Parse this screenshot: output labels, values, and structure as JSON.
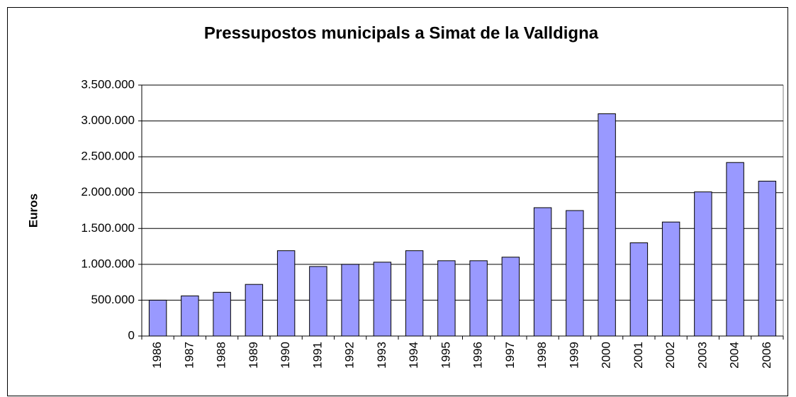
{
  "chart_data": {
    "type": "bar",
    "title": "Pressupostos municipals a Simat de la Valldigna",
    "y_label": "Euros",
    "categories": [
      "1986",
      "1987",
      "1988",
      "1989",
      "1990",
      "1991",
      "1992",
      "1993",
      "1994",
      "1995",
      "1996",
      "1997",
      "1998",
      "1999",
      "2000",
      "2001",
      "2002",
      "2003",
      "2004",
      "2006"
    ],
    "values": [
      500000,
      560000,
      610000,
      720000,
      1190000,
      970000,
      1000000,
      1030000,
      1190000,
      1050000,
      1050000,
      1100000,
      1790000,
      1750000,
      3100000,
      1300000,
      1590000,
      2010000,
      2420000,
      2160000
    ],
    "color": "#9999ff",
    "ylim": [
      0,
      3500000
    ],
    "yticks": [
      0,
      {
        "value": 500000,
        "label": "500.000"
      },
      {
        "value": 1000000,
        "label": "1.000.000"
      },
      {
        "value": 1500000,
        "label": "1.500.000"
      },
      {
        "value": 2000000,
        "label": "2.000.000"
      },
      {
        "value": 2500000,
        "label": "2.500.000"
      },
      {
        "value": 3000000,
        "label": "3.000.000"
      },
      {
        "value": 3500000,
        "label": "3.500.000"
      }
    ],
    "grid": true
  }
}
